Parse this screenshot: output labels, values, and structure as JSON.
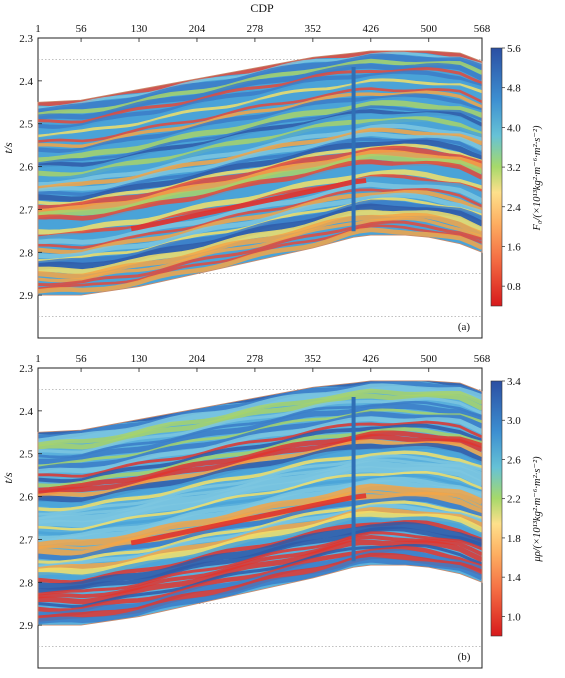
{
  "chart_data": [
    {
      "type": "heatmap",
      "panel_label": "(a)",
      "xlabel": "CDP",
      "ylabel": "t/s",
      "x_ticks": [
        1,
        56,
        130,
        204,
        278,
        352,
        426,
        500,
        568
      ],
      "y_ticks": [
        2.3,
        2.4,
        2.5,
        2.6,
        2.7,
        2.8,
        2.9
      ],
      "xlim": [
        1,
        568
      ],
      "ylim": [
        2.3,
        3.0
      ],
      "colorbar": {
        "title": "F₀/(×10¹³kg²·m⁻⁶·m²·s⁻²)",
        "ticks": [
          0.8,
          1.6,
          2.4,
          3.2,
          4.0,
          4.8,
          5.6
        ],
        "range": [
          0.4,
          5.6
        ]
      },
      "well_cdp": 404,
      "gridlines": "dotted-horizontal"
    },
    {
      "type": "heatmap",
      "panel_label": "(b)",
      "ylabel": "t/s",
      "x_ticks": [
        1,
        56,
        130,
        204,
        278,
        352,
        426,
        500,
        568
      ],
      "y_ticks": [
        2.3,
        2.4,
        2.5,
        2.6,
        2.7,
        2.8,
        2.9
      ],
      "xlim": [
        1,
        568
      ],
      "ylim": [
        2.3,
        3.0
      ],
      "colorbar": {
        "title": "μρ/(×10¹³kg²·m⁻⁶·m²·s⁻²)",
        "ticks": [
          1.0,
          1.4,
          1.8,
          2.2,
          2.6,
          3.0,
          3.4
        ],
        "range": [
          0.8,
          3.4
        ]
      },
      "well_cdp": 404,
      "gridlines": "dotted-horizontal"
    }
  ]
}
